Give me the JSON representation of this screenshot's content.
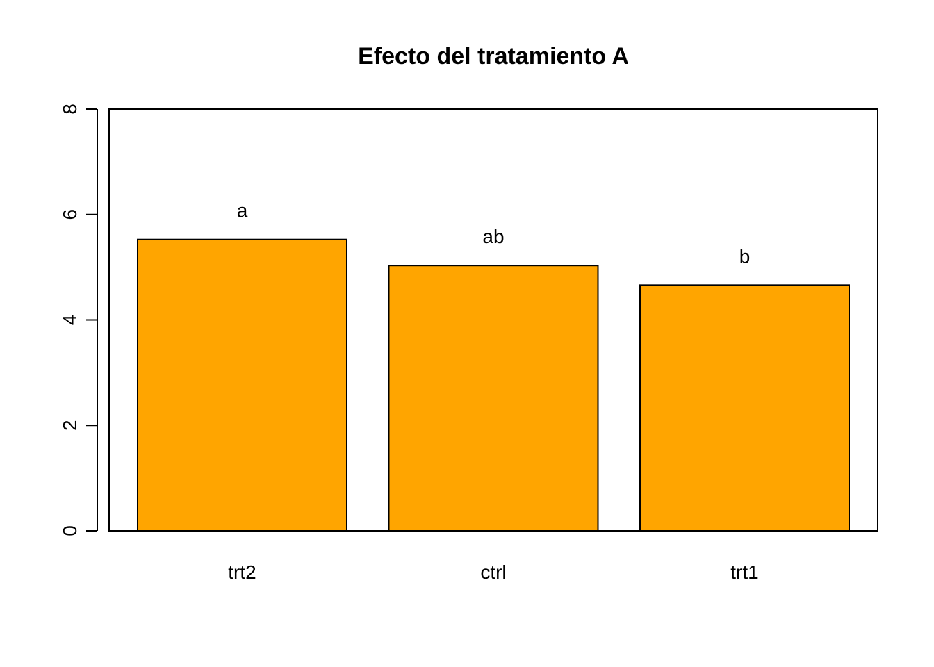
{
  "chart_data": {
    "type": "bar",
    "title": "Efecto del tratamiento A",
    "xlabel": "",
    "ylabel": "",
    "categories": [
      "trt2",
      "ctrl",
      "trt1"
    ],
    "values": [
      5.526,
      5.032,
      4.661
    ],
    "bar_labels": [
      "a",
      "ab",
      "b"
    ],
    "ylim": [
      0,
      8
    ],
    "yticks": [
      "0",
      "2",
      "4",
      "6",
      "8"
    ],
    "grid": false,
    "bar_color": "#FFA500",
    "bar_border_color": "#000000"
  }
}
